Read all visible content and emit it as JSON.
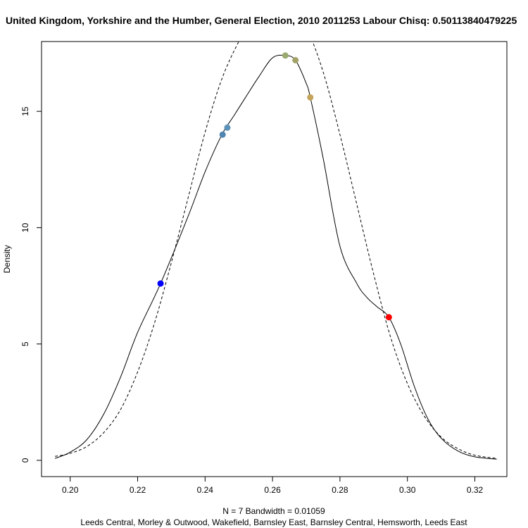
{
  "chart_data": {
    "type": "line",
    "title": "United Kingdom, Yorkshire and the Humber, General Election, 2010 2011253 Labour Chisq: 0.50113840479225",
    "xlabel": "N = 7   Bandwidth = 0.01059",
    "xlabel2": "Leeds Central, Morley & Outwood, Wakefield, Barnsley East, Barnsley Central, Hemsworth, Leeds East",
    "ylabel": "Density",
    "xlim": [
      0.1915,
      0.3295
    ],
    "ylim": [
      -0.7,
      18.0
    ],
    "x_ticks": [
      0.2,
      0.22,
      0.24,
      0.26,
      0.28,
      0.3,
      0.32
    ],
    "x_tick_labels": [
      "0.20",
      "0.22",
      "0.24",
      "0.26",
      "0.28",
      "0.30",
      "0.32"
    ],
    "y_ticks": [
      0,
      5,
      10,
      15
    ],
    "y_tick_labels": [
      "0",
      "5",
      "10",
      "15"
    ],
    "series": [
      {
        "style": "solid",
        "x": [
          0.1955,
          0.2,
          0.205,
          0.21,
          0.215,
          0.22,
          0.2268,
          0.235,
          0.24,
          0.245,
          0.2485,
          0.252,
          0.256,
          0.26,
          0.2638,
          0.2668,
          0.27,
          0.2712,
          0.275,
          0.28,
          0.285,
          0.288,
          0.291,
          0.2945,
          0.298,
          0.302,
          0.306,
          0.31,
          0.315,
          0.32,
          0.3265
        ],
        "y": [
          0.08,
          0.35,
          0.9,
          2.0,
          3.6,
          5.5,
          7.6,
          10.5,
          12.4,
          14.0,
          14.8,
          15.6,
          16.5,
          17.3,
          17.4,
          17.2,
          16.2,
          15.6,
          13.0,
          9.2,
          7.6,
          7.0,
          6.6,
          6.15,
          5.0,
          3.2,
          1.8,
          0.95,
          0.4,
          0.15,
          0.05
        ]
      },
      {
        "style": "dashed",
        "x": [
          0.1955,
          0.2,
          0.205,
          0.21,
          0.215,
          0.22,
          0.225,
          0.23,
          0.235,
          0.24,
          0.245,
          0.25,
          0.255,
          0.26,
          0.2635,
          0.265,
          0.27,
          0.275,
          0.28,
          0.285,
          0.29,
          0.295,
          0.3,
          0.305,
          0.31,
          0.315,
          0.32,
          0.3265
        ],
        "y": [
          0.17,
          0.3,
          0.6,
          1.2,
          2.2,
          3.8,
          5.9,
          8.5,
          11.3,
          14.1,
          16.4,
          18.0,
          19.2,
          19.6,
          19.6,
          19.5,
          18.6,
          16.7,
          14.0,
          11.0,
          8.0,
          5.3,
          3.3,
          1.9,
          1.0,
          0.5,
          0.22,
          0.08
        ]
      }
    ],
    "points": [
      {
        "x": 0.2268,
        "y": 7.6,
        "color": "#0000ff"
      },
      {
        "x": 0.2452,
        "y": 14.0,
        "color": "#4f85b1"
      },
      {
        "x": 0.2466,
        "y": 14.3,
        "color": "#5c92b8"
      },
      {
        "x": 0.2638,
        "y": 17.4,
        "color": "#9aa96e"
      },
      {
        "x": 0.2668,
        "y": 17.2,
        "color": "#a3a368"
      },
      {
        "x": 0.2712,
        "y": 15.6,
        "color": "#c4a35a"
      },
      {
        "x": 0.2945,
        "y": 6.15,
        "color": "#ff0000"
      }
    ]
  }
}
